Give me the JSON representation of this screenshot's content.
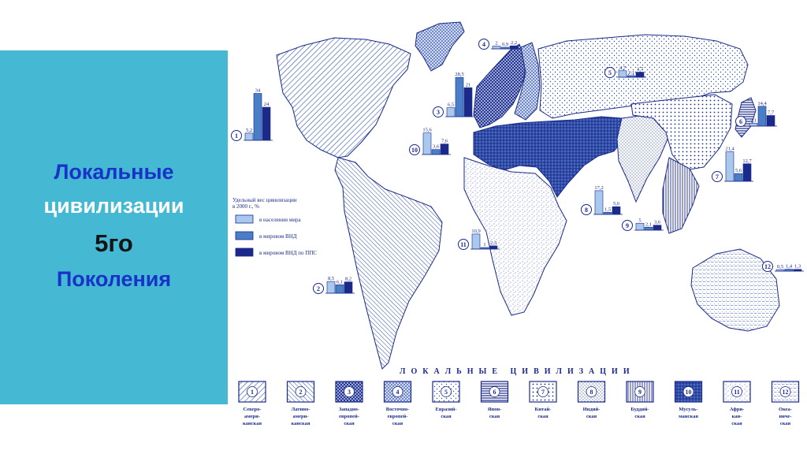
{
  "slide": {
    "line1": "Локальные",
    "line2": "цивилизации",
    "line3": "5го",
    "line4": "Поколения",
    "panel_color": "#45b9d3",
    "line1_color": "#1932c8",
    "line2_color": "#ffffff",
    "line4_color": "#1932c8"
  },
  "map": {
    "weight_legend": {
      "title_line1": "Удельный вес цивилизации",
      "title_line2": "в 2000 г., %",
      "items": [
        {
          "label": "в населении мира",
          "color": "#a8c8ee"
        },
        {
          "label": "в мировом ВНД",
          "color": "#4a7fc8"
        },
        {
          "label": "в мировом ВНД по ППС",
          "color": "#1a2a8a"
        }
      ]
    },
    "region_charts": [
      {
        "id": "1",
        "values": [
          "5,2",
          "34",
          "24"
        ],
        "v": [
          5.2,
          34,
          24
        ]
      },
      {
        "id": "2",
        "values": [
          "8,5",
          "6,1",
          "8,2"
        ],
        "v": [
          8.5,
          6.1,
          8.2
        ]
      },
      {
        "id": "3",
        "values": [
          "6,5",
          "28,5",
          "21"
        ],
        "v": [
          6.5,
          28.5,
          21
        ]
      },
      {
        "id": "4",
        "values": [
          "2",
          "0,9",
          "2,2"
        ],
        "v": [
          2,
          0.9,
          2.2
        ]
      },
      {
        "id": "5",
        "values": [
          "4,7",
          "1,1",
          "3,7"
        ],
        "v": [
          4.7,
          1.1,
          3.7
        ]
      },
      {
        "id": "6",
        "values": [
          "2,1",
          "14,4",
          "7,7"
        ],
        "v": [
          2.1,
          14.4,
          7.7
        ]
      },
      {
        "id": "7",
        "values": [
          "21,4",
          "5,6",
          "12,7"
        ],
        "v": [
          21.4,
          5.6,
          12.7
        ]
      },
      {
        "id": "8",
        "values": [
          "17,2",
          "1,5",
          "5,6"
        ],
        "v": [
          17.2,
          1.5,
          5.6
        ]
      },
      {
        "id": "9",
        "values": [
          "5",
          "2,1",
          "3,6"
        ],
        "v": [
          5,
          2.1,
          3.6
        ]
      },
      {
        "id": "10",
        "values": [
          "15,6",
          "3,6",
          "7,6"
        ],
        "v": [
          15.6,
          3.6,
          7.6
        ]
      },
      {
        "id": "11",
        "values": [
          "10,9",
          "1",
          "2,3"
        ],
        "v": [
          10.9,
          1,
          2.3
        ]
      },
      {
        "id": "12",
        "values": [
          "0,5",
          "1,4",
          "1,3"
        ],
        "v": [
          0.5,
          1.4,
          1.3
        ]
      }
    ],
    "legend_title": "ЛОКАЛЬНЫЕ ЦИВИЛИЗАЦИИ",
    "civilizations": [
      {
        "id": "1",
        "lines": [
          "Северо-",
          "амери-",
          "канская"
        ]
      },
      {
        "id": "2",
        "lines": [
          "Латино-",
          "амери-",
          "канская"
        ]
      },
      {
        "id": "3",
        "lines": [
          "Западно-",
          "европей-",
          "ская"
        ]
      },
      {
        "id": "4",
        "lines": [
          "Восточно-",
          "европей-",
          "ская"
        ]
      },
      {
        "id": "5",
        "lines": [
          "Евразий-",
          "ская"
        ]
      },
      {
        "id": "6",
        "lines": [
          "Япон-",
          "ская"
        ]
      },
      {
        "id": "7",
        "lines": [
          "Китай-",
          "ская"
        ]
      },
      {
        "id": "8",
        "lines": [
          "Индий-",
          "ская"
        ]
      },
      {
        "id": "9",
        "lines": [
          "Буддий-",
          "ская"
        ]
      },
      {
        "id": "10",
        "lines": [
          "Мусуль-",
          "манская"
        ]
      },
      {
        "id": "11",
        "lines": [
          "Афри-",
          "кан-",
          "ская"
        ]
      },
      {
        "id": "12",
        "lines": [
          "Океа-",
          "ниче-",
          "ская"
        ]
      }
    ]
  }
}
